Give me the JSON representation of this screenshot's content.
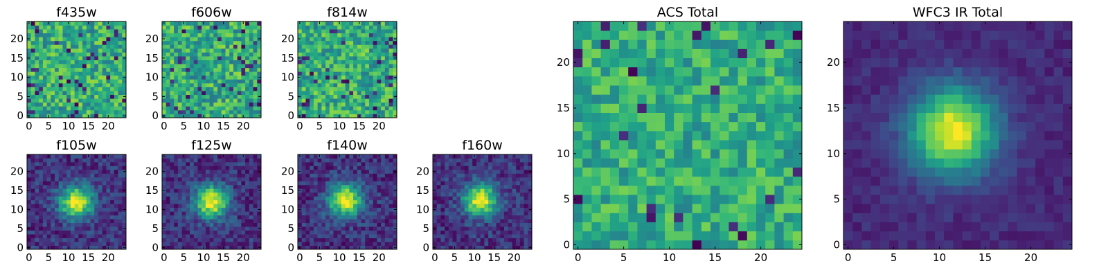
{
  "chart_data": [
    {
      "type": "heatmap",
      "title": "f435w",
      "profile": "noise",
      "seed": 11,
      "grid": [
        25,
        25
      ],
      "xlim": [
        -0.5,
        24.5
      ],
      "ylim": [
        -0.5,
        24.5
      ],
      "xticks": [
        "0",
        "5",
        "10",
        "15",
        "20"
      ],
      "yticks": [
        "0",
        "5",
        "10",
        "15",
        "20"
      ],
      "colormap": "viridis"
    },
    {
      "type": "heatmap",
      "title": "f606w",
      "profile": "noise",
      "seed": 23,
      "grid": [
        25,
        25
      ],
      "xlim": [
        -0.5,
        24.5
      ],
      "ylim": [
        -0.5,
        24.5
      ],
      "xticks": [
        "0",
        "5",
        "10",
        "15",
        "20"
      ],
      "yticks": [
        "0",
        "5",
        "10",
        "15",
        "20"
      ],
      "colormap": "viridis"
    },
    {
      "type": "heatmap",
      "title": "f814w",
      "profile": "noise",
      "seed": 37,
      "grid": [
        25,
        25
      ],
      "xlim": [
        -0.5,
        24.5
      ],
      "ylim": [
        -0.5,
        24.5
      ],
      "xticks": [
        "0",
        "5",
        "10",
        "15",
        "20"
      ],
      "yticks": [
        "0",
        "5",
        "10",
        "15",
        "20"
      ],
      "colormap": "viridis"
    },
    {
      "type": "heatmap",
      "title": "f105w",
      "profile": "blob",
      "seed": 41,
      "grid": [
        25,
        25
      ],
      "center": [
        12,
        12
      ],
      "xlim": [
        -0.5,
        24.5
      ],
      "ylim": [
        -0.5,
        24.5
      ],
      "xticks": [
        "0",
        "5",
        "10",
        "15",
        "20"
      ],
      "yticks": [
        "0",
        "5",
        "10",
        "15",
        "20"
      ],
      "colormap": "viridis"
    },
    {
      "type": "heatmap",
      "title": "f125w",
      "profile": "blob",
      "seed": 53,
      "grid": [
        25,
        25
      ],
      "center": [
        12,
        12
      ],
      "xlim": [
        -0.5,
        24.5
      ],
      "ylim": [
        -0.5,
        24.5
      ],
      "xticks": [
        "0",
        "5",
        "10",
        "15",
        "20"
      ],
      "yticks": [
        "0",
        "5",
        "10",
        "15",
        "20"
      ],
      "colormap": "viridis"
    },
    {
      "type": "heatmap",
      "title": "f140w",
      "profile": "blob",
      "seed": 67,
      "grid": [
        25,
        25
      ],
      "center": [
        11.5,
        12.5
      ],
      "xlim": [
        -0.5,
        24.5
      ],
      "ylim": [
        -0.5,
        24.5
      ],
      "xticks": [
        "0",
        "5",
        "10",
        "15",
        "20"
      ],
      "yticks": [
        "0",
        "5",
        "10",
        "15",
        "20"
      ],
      "colormap": "viridis"
    },
    {
      "type": "heatmap",
      "title": "f160w",
      "profile": "blob",
      "seed": 79,
      "grid": [
        25,
        25
      ],
      "center": [
        11.5,
        12.5
      ],
      "xlim": [
        -0.5,
        24.5
      ],
      "ylim": [
        -0.5,
        24.5
      ],
      "xticks": [
        "0",
        "5",
        "10",
        "15",
        "20"
      ],
      "yticks": [
        "0",
        "5",
        "10",
        "15",
        "20"
      ],
      "colormap": "viridis"
    },
    {
      "type": "heatmap",
      "title": "ACS Total",
      "profile": "noise_high",
      "seed": 97,
      "grid": [
        25,
        25
      ],
      "xlim": [
        -0.5,
        24.5
      ],
      "ylim": [
        -0.5,
        24.5
      ],
      "xticks": [
        "0",
        "5",
        "10",
        "15",
        "20"
      ],
      "yticks": [
        "0",
        "5",
        "10",
        "15",
        "20"
      ],
      "colormap": "viridis"
    },
    {
      "type": "heatmap",
      "title": "WFC3 IR Total",
      "profile": "blob_smooth",
      "seed": 101,
      "grid": [
        25,
        25
      ],
      "center": [
        11.5,
        12.5
      ],
      "xlim": [
        -0.5,
        24.5
      ],
      "ylim": [
        -0.5,
        24.5
      ],
      "xticks": [
        "0",
        "5",
        "10",
        "15",
        "20"
      ],
      "yticks": [
        "0",
        "5",
        "10",
        "15",
        "20"
      ],
      "colormap": "viridis"
    }
  ]
}
